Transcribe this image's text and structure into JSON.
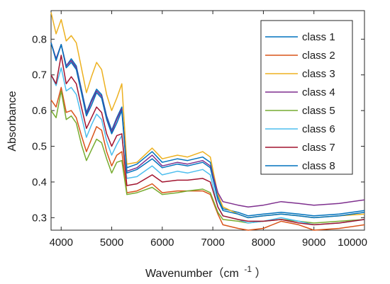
{
  "chart_data": {
    "type": "line",
    "title": "",
    "xlabel": "Wavenumber（cm",
    "xlabel_superscript": "-1",
    "xlabel_suffix": "）",
    "ylabel": "Absorbance",
    "xlim": [
      3800,
      10000
    ],
    "ylim": [
      0.265,
      0.88
    ],
    "xticks": [
      4000,
      5000,
      6000,
      7000,
      8000,
      9000,
      10000
    ],
    "yticks": [
      0.3,
      0.4,
      0.5,
      0.6,
      0.7,
      0.8
    ],
    "legend_position": "top-right",
    "grid": false,
    "x": [
      3800,
      3900,
      4000,
      4100,
      4200,
      4300,
      4400,
      4500,
      4600,
      4700,
      4800,
      4900,
      5000,
      5100,
      5200,
      5300,
      5500,
      5800,
      6000,
      6300,
      6500,
      6800,
      6950,
      7100,
      7200,
      7500,
      7700,
      8000,
      8350,
      8700,
      9000,
      9500,
      10000
    ],
    "series": [
      {
        "name": "class 1",
        "color": "#0072BD",
        "values": [
          0.79,
          0.745,
          0.785,
          0.725,
          0.745,
          0.725,
          0.66,
          0.595,
          0.63,
          0.66,
          0.645,
          0.585,
          0.545,
          0.58,
          0.61,
          0.44,
          0.45,
          0.485,
          0.455,
          0.465,
          0.46,
          0.47,
          0.455,
          0.36,
          0.325,
          0.315,
          0.305,
          0.31,
          0.315,
          0.31,
          0.305,
          0.31,
          0.32
        ]
      },
      {
        "name": "class 2",
        "color": "#D95319",
        "values": [
          0.63,
          0.61,
          0.665,
          0.595,
          0.6,
          0.58,
          0.53,
          0.485,
          0.52,
          0.555,
          0.545,
          0.485,
          0.445,
          0.475,
          0.485,
          0.37,
          0.375,
          0.395,
          0.37,
          0.375,
          0.375,
          0.375,
          0.365,
          0.31,
          0.28,
          0.27,
          0.265,
          0.27,
          0.29,
          0.28,
          0.265,
          0.27,
          0.28
        ]
      },
      {
        "name": "class 3",
        "color": "#EDB120",
        "values": [
          0.875,
          0.815,
          0.855,
          0.795,
          0.81,
          0.79,
          0.72,
          0.65,
          0.695,
          0.735,
          0.715,
          0.645,
          0.6,
          0.635,
          0.675,
          0.45,
          0.455,
          0.495,
          0.465,
          0.475,
          0.47,
          0.485,
          0.47,
          0.365,
          0.33,
          0.31,
          0.3,
          0.305,
          0.31,
          0.305,
          0.3,
          0.305,
          0.31
        ]
      },
      {
        "name": "class 4",
        "color": "#7E2F8E",
        "values": [
          0.79,
          0.745,
          0.785,
          0.725,
          0.74,
          0.72,
          0.655,
          0.59,
          0.625,
          0.655,
          0.64,
          0.58,
          0.54,
          0.575,
          0.605,
          0.43,
          0.44,
          0.475,
          0.445,
          0.455,
          0.45,
          0.46,
          0.445,
          0.37,
          0.345,
          0.335,
          0.33,
          0.335,
          0.345,
          0.34,
          0.335,
          0.34,
          0.35
        ]
      },
      {
        "name": "class 5",
        "color": "#77AC30",
        "values": [
          0.6,
          0.58,
          0.655,
          0.575,
          0.585,
          0.565,
          0.505,
          0.46,
          0.49,
          0.52,
          0.51,
          0.465,
          0.425,
          0.455,
          0.46,
          0.365,
          0.37,
          0.385,
          0.365,
          0.37,
          0.375,
          0.38,
          0.37,
          0.315,
          0.295,
          0.29,
          0.285,
          0.29,
          0.295,
          0.29,
          0.285,
          0.29,
          0.295
        ]
      },
      {
        "name": "class 6",
        "color": "#4DBEEE",
        "values": [
          0.7,
          0.67,
          0.72,
          0.655,
          0.665,
          0.645,
          0.585,
          0.525,
          0.56,
          0.59,
          0.575,
          0.515,
          0.475,
          0.505,
          0.53,
          0.41,
          0.415,
          0.445,
          0.42,
          0.43,
          0.425,
          0.435,
          0.42,
          0.33,
          0.305,
          0.295,
          0.285,
          0.29,
          0.3,
          0.29,
          0.28,
          0.285,
          0.295
        ]
      },
      {
        "name": "class 7",
        "color": "#A2142F",
        "values": [
          0.7,
          0.675,
          0.755,
          0.675,
          0.695,
          0.675,
          0.61,
          0.55,
          0.58,
          0.61,
          0.595,
          0.535,
          0.5,
          0.53,
          0.535,
          0.39,
          0.395,
          0.42,
          0.4,
          0.405,
          0.405,
          0.41,
          0.4,
          0.33,
          0.305,
          0.295,
          0.29,
          0.29,
          0.295,
          0.285,
          0.28,
          0.285,
          0.295
        ]
      },
      {
        "name": "class 8",
        "color": "#0072BD",
        "values": [
          0.79,
          0.74,
          0.785,
          0.72,
          0.735,
          0.715,
          0.65,
          0.585,
          0.615,
          0.65,
          0.635,
          0.575,
          0.535,
          0.565,
          0.6,
          0.425,
          0.435,
          0.465,
          0.44,
          0.45,
          0.445,
          0.455,
          0.44,
          0.35,
          0.32,
          0.31,
          0.3,
          0.305,
          0.31,
          0.305,
          0.3,
          0.305,
          0.315
        ]
      }
    ]
  }
}
